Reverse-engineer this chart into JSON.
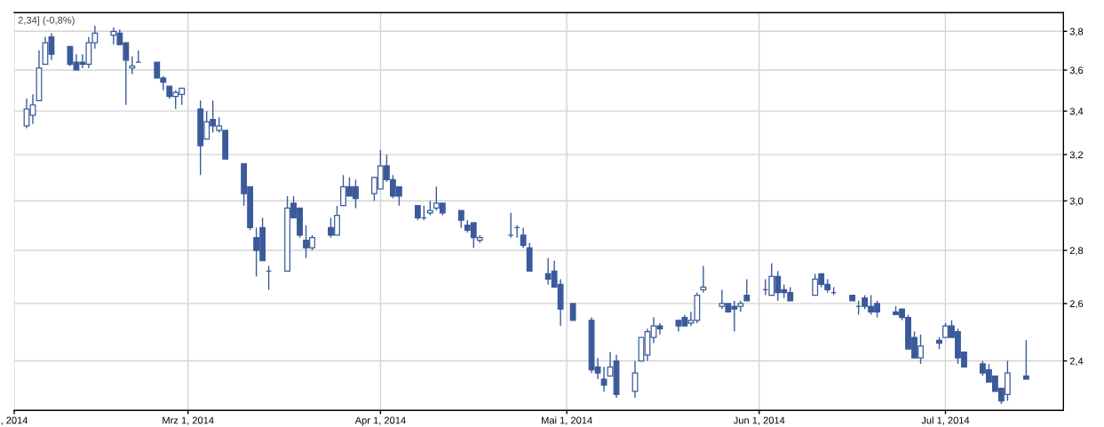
{
  "chart_data": {
    "type": "candlestick",
    "annotations": [
      "2,34] (-0,8%)"
    ],
    "color": "#3b5a9b",
    "x": [
      "2014-02-03",
      "2014-02-04",
      "2014-02-05",
      "2014-02-06",
      "2014-02-07",
      "2014-02-10",
      "2014-02-11",
      "2014-02-12",
      "2014-02-13",
      "2014-02-14",
      "2014-02-17",
      "2014-02-18",
      "2014-02-19",
      "2014-02-20",
      "2014-02-21",
      "2014-02-24",
      "2014-02-25",
      "2014-02-26",
      "2014-02-27",
      "2014-02-28",
      "2014-03-03",
      "2014-03-04",
      "2014-03-05",
      "2014-03-06",
      "2014-03-07",
      "2014-03-10",
      "2014-03-11",
      "2014-03-12",
      "2014-03-13",
      "2014-03-14",
      "2014-03-17",
      "2014-03-18",
      "2014-03-19",
      "2014-03-20",
      "2014-03-21",
      "2014-03-24",
      "2014-03-25",
      "2014-03-26",
      "2014-03-27",
      "2014-03-28",
      "2014-03-31",
      "2014-04-01",
      "2014-04-02",
      "2014-04-03",
      "2014-04-04",
      "2014-04-07",
      "2014-04-08",
      "2014-04-09",
      "2014-04-10",
      "2014-04-11",
      "2014-04-14",
      "2014-04-15",
      "2014-04-16",
      "2014-04-17",
      "2014-04-22",
      "2014-04-23",
      "2014-04-24",
      "2014-04-25",
      "2014-04-28",
      "2014-04-29",
      "2014-04-30",
      "2014-05-02",
      "2014-05-05",
      "2014-05-06",
      "2014-05-07",
      "2014-05-08",
      "2014-05-09",
      "2014-05-12",
      "2014-05-13",
      "2014-05-14",
      "2014-05-15",
      "2014-05-16",
      "2014-05-19",
      "2014-05-20",
      "2014-05-21",
      "2014-05-22",
      "2014-05-23",
      "2014-05-26",
      "2014-05-27",
      "2014-05-28",
      "2014-05-29",
      "2014-05-30",
      "2014-06-02",
      "2014-06-03",
      "2014-06-04",
      "2014-06-05",
      "2014-06-06",
      "2014-06-10",
      "2014-06-11",
      "2014-06-12",
      "2014-06-13",
      "2014-06-16",
      "2014-06-17",
      "2014-06-18",
      "2014-06-19",
      "2014-06-20",
      "2014-06-23",
      "2014-06-24",
      "2014-06-25",
      "2014-06-26",
      "2014-06-27",
      "2014-06-30",
      "2014-07-01",
      "2014-07-02",
      "2014-07-03",
      "2014-07-04",
      "2014-07-07",
      "2014-07-08",
      "2014-07-09",
      "2014-07-10",
      "2014-07-11",
      "2014-07-14"
    ],
    "ohlc": [
      [
        3.33,
        3.46,
        3.32,
        3.41
      ],
      [
        3.38,
        3.48,
        3.34,
        3.43
      ],
      [
        3.45,
        3.7,
        3.45,
        3.61
      ],
      [
        3.63,
        3.77,
        3.63,
        3.74
      ],
      [
        3.77,
        3.79,
        3.65,
        3.68
      ],
      [
        3.72,
        3.72,
        3.62,
        3.63
      ],
      [
        3.64,
        3.68,
        3.6,
        3.6
      ],
      [
        3.64,
        3.68,
        3.61,
        3.63
      ],
      [
        3.63,
        3.77,
        3.61,
        3.74
      ],
      [
        3.74,
        3.83,
        3.71,
        3.79
      ],
      [
        3.78,
        3.82,
        3.73,
        3.8
      ],
      [
        3.79,
        3.81,
        3.73,
        3.73
      ],
      [
        3.74,
        3.74,
        3.43,
        3.65
      ],
      [
        3.61,
        3.67,
        3.58,
        3.62
      ],
      [
        3.64,
        3.7,
        3.64,
        3.64
      ],
      [
        3.64,
        3.64,
        3.56,
        3.56
      ],
      [
        3.56,
        3.57,
        3.5,
        3.54
      ],
      [
        3.52,
        3.52,
        3.46,
        3.47
      ],
      [
        3.47,
        3.5,
        3.41,
        3.49
      ],
      [
        3.48,
        3.51,
        3.43,
        3.51
      ],
      [
        3.41,
        3.45,
        3.11,
        3.24
      ],
      [
        3.27,
        3.4,
        3.27,
        3.35
      ],
      [
        3.36,
        3.45,
        3.3,
        3.33
      ],
      [
        3.31,
        3.37,
        3.3,
        3.33
      ],
      [
        3.31,
        3.31,
        3.18,
        3.18
      ],
      [
        3.16,
        3.16,
        2.98,
        3.03
      ],
      [
        3.06,
        3.06,
        2.88,
        2.89
      ],
      [
        2.85,
        2.89,
        2.7,
        2.8
      ],
      [
        2.89,
        2.93,
        2.76,
        2.76
      ],
      [
        2.72,
        2.74,
        2.65,
        2.72
      ],
      [
        2.72,
        3.02,
        2.72,
        2.97
      ],
      [
        2.99,
        3.02,
        2.93,
        2.93
      ],
      [
        2.97,
        2.97,
        2.85,
        2.86
      ],
      [
        2.84,
        2.9,
        2.77,
        2.81
      ],
      [
        2.81,
        2.86,
        2.8,
        2.85
      ],
      [
        2.89,
        2.93,
        2.85,
        2.86
      ],
      [
        2.86,
        2.98,
        2.86,
        2.94
      ],
      [
        2.98,
        3.11,
        2.98,
        3.06
      ],
      [
        3.06,
        3.1,
        3.02,
        3.02
      ],
      [
        3.06,
        3.09,
        2.97,
        3.01
      ],
      [
        3.03,
        3.1,
        3.0,
        3.1
      ],
      [
        3.05,
        3.22,
        3.05,
        3.15
      ],
      [
        3.15,
        3.2,
        3.08,
        3.09
      ],
      [
        3.09,
        3.11,
        3.01,
        3.02
      ],
      [
        3.06,
        3.06,
        2.98,
        3.02
      ],
      [
        2.98,
        2.98,
        2.92,
        2.93
      ],
      [
        2.93,
        2.98,
        2.92,
        2.93
      ],
      [
        2.95,
        3.0,
        2.94,
        2.96
      ],
      [
        2.97,
        3.06,
        2.96,
        2.99
      ],
      [
        2.99,
        2.99,
        2.94,
        2.95
      ],
      [
        2.96,
        2.96,
        2.89,
        2.92
      ],
      [
        2.9,
        2.92,
        2.87,
        2.88
      ],
      [
        2.91,
        2.91,
        2.81,
        2.85
      ],
      [
        2.84,
        2.86,
        2.83,
        2.85
      ],
      [
        2.86,
        2.95,
        2.85,
        2.86
      ],
      [
        2.89,
        2.9,
        2.85,
        2.89
      ],
      [
        2.86,
        2.89,
        2.81,
        2.82
      ],
      [
        2.81,
        2.83,
        2.72,
        2.72
      ],
      [
        2.71,
        2.77,
        2.67,
        2.69
      ],
      [
        2.72,
        2.76,
        2.66,
        2.66
      ],
      [
        2.67,
        2.69,
        2.52,
        2.58
      ],
      [
        2.6,
        2.6,
        2.54,
        2.54
      ],
      [
        2.54,
        2.55,
        2.36,
        2.37
      ],
      [
        2.38,
        2.41,
        2.34,
        2.36
      ],
      [
        2.34,
        2.38,
        2.3,
        2.32
      ],
      [
        2.35,
        2.43,
        2.35,
        2.38
      ],
      [
        2.4,
        2.42,
        2.28,
        2.29
      ],
      [
        2.3,
        2.4,
        2.28,
        2.36
      ],
      [
        2.4,
        2.48,
        2.4,
        2.48
      ],
      [
        2.42,
        2.51,
        2.4,
        2.5
      ],
      [
        2.48,
        2.55,
        2.46,
        2.52
      ],
      [
        2.52,
        2.53,
        2.49,
        2.51
      ],
      [
        2.54,
        2.54,
        2.5,
        2.52
      ],
      [
        2.55,
        2.56,
        2.52,
        2.52
      ],
      [
        2.53,
        2.57,
        2.52,
        2.54
      ],
      [
        2.54,
        2.64,
        2.53,
        2.63
      ],
      [
        2.65,
        2.74,
        2.64,
        2.66
      ],
      [
        2.59,
        2.65,
        2.58,
        2.6
      ],
      [
        2.6,
        2.6,
        2.57,
        2.57
      ],
      [
        2.59,
        2.61,
        2.5,
        2.58
      ],
      [
        2.59,
        2.61,
        2.57,
        2.6
      ],
      [
        2.63,
        2.69,
        2.61,
        2.61
      ],
      [
        2.65,
        2.69,
        2.63,
        2.65
      ],
      [
        2.63,
        2.75,
        2.63,
        2.7
      ],
      [
        2.7,
        2.72,
        2.61,
        2.64
      ],
      [
        2.65,
        2.67,
        2.62,
        2.64
      ],
      [
        2.64,
        2.66,
        2.61,
        2.61
      ],
      [
        2.63,
        2.71,
        2.63,
        2.69
      ],
      [
        2.71,
        2.71,
        2.66,
        2.67
      ],
      [
        2.67,
        2.69,
        2.64,
        2.65
      ],
      [
        2.64,
        2.66,
        2.63,
        2.64
      ],
      [
        2.63,
        2.63,
        2.61,
        2.61
      ],
      [
        2.59,
        2.61,
        2.56,
        2.59
      ],
      [
        2.62,
        2.63,
        2.58,
        2.59
      ],
      [
        2.59,
        2.63,
        2.56,
        2.57
      ],
      [
        2.6,
        2.61,
        2.55,
        2.57
      ],
      [
        2.57,
        2.59,
        2.56,
        2.56
      ],
      [
        2.58,
        2.58,
        2.54,
        2.55
      ],
      [
        2.55,
        2.56,
        2.44,
        2.44
      ],
      [
        2.48,
        2.5,
        2.41,
        2.41
      ],
      [
        2.41,
        2.49,
        2.39,
        2.45
      ],
      [
        2.47,
        2.48,
        2.44,
        2.46
      ],
      [
        2.48,
        2.53,
        2.48,
        2.52
      ],
      [
        2.52,
        2.54,
        2.48,
        2.48
      ],
      [
        2.5,
        2.51,
        2.39,
        2.41
      ],
      [
        2.43,
        2.43,
        2.38,
        2.38
      ],
      [
        2.39,
        2.4,
        2.35,
        2.36
      ],
      [
        2.37,
        2.39,
        2.33,
        2.33
      ],
      [
        2.35,
        2.35,
        2.3,
        2.3
      ],
      [
        2.31,
        2.31,
        2.26,
        2.27
      ],
      [
        2.29,
        2.4,
        2.27,
        2.36
      ],
      [
        2.35,
        2.47,
        2.34,
        2.34
      ]
    ],
    "xlim": [
      "2014-02-01",
      "2014-07-20"
    ],
    "xticks": [
      {
        "value": "2014-02-01",
        "label": ", 2014"
      },
      {
        "value": "2014-03-01",
        "label": "Mrz 1, 2014"
      },
      {
        "value": "2014-04-01",
        "label": "Apr 1, 2014"
      },
      {
        "value": "2014-05-01",
        "label": "Mai 1, 2014"
      },
      {
        "value": "2014-06-01",
        "label": "Jun 1, 2014"
      },
      {
        "value": "2014-07-01",
        "label": "Jul 1, 2014"
      }
    ],
    "ylim": [
      2.24,
      3.9
    ],
    "yticks": [
      {
        "value": 2.4,
        "label": "2,4"
      },
      {
        "value": 2.6,
        "label": "2,6"
      },
      {
        "value": 2.8,
        "label": "2,8"
      },
      {
        "value": 3.0,
        "label": "3,0"
      },
      {
        "value": 3.2,
        "label": "3,2"
      },
      {
        "value": 3.4,
        "label": "3,4"
      },
      {
        "value": 3.6,
        "label": "3,6"
      },
      {
        "value": 3.8,
        "label": "3,8"
      }
    ],
    "log": "y",
    "grid": true
  }
}
